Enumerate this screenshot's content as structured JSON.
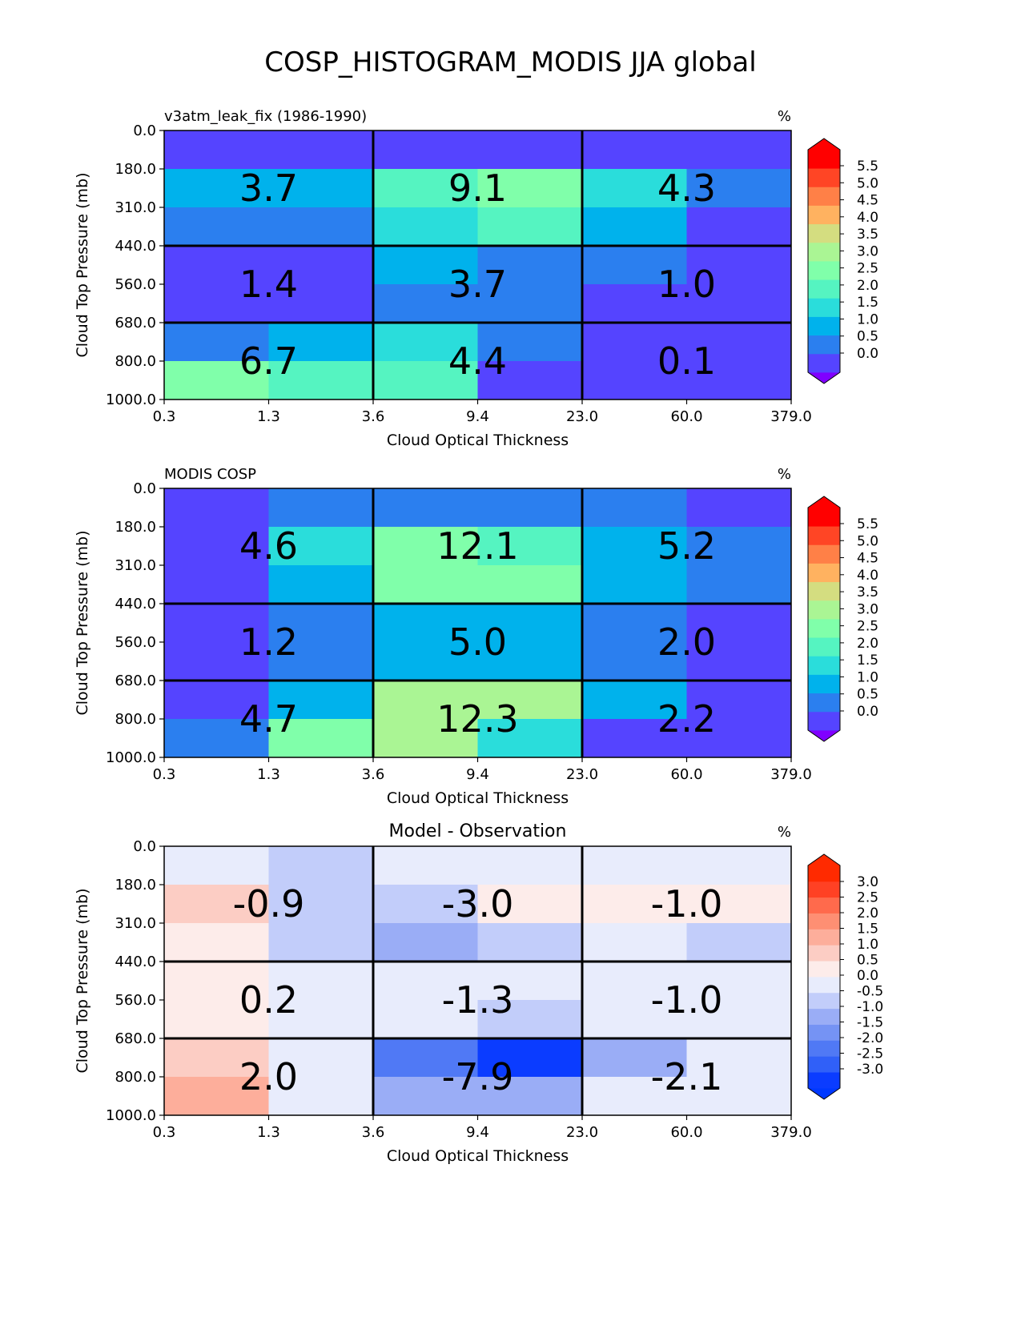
{
  "figure": {
    "title": "COSP_HISTOGRAM_MODIS JJA global"
  },
  "chart_data": [
    {
      "type": "heatmap",
      "title_left": "v3atm_leak_fix (1986-1990)",
      "title_center": "",
      "units": "%",
      "xlabel": "Cloud Optical Thickness",
      "ylabel": "Cloud Top Pressure (mb)",
      "x_ticks": [
        "0.3",
        "1.3",
        "3.6",
        "9.4",
        "23.0",
        "60.0",
        "379.0"
      ],
      "y_ticks": [
        "0.0",
        "180.0",
        "310.0",
        "440.0",
        "560.0",
        "680.0",
        "800.0",
        "1000.0"
      ],
      "cells": [
        [
          0.3,
          0.3,
          0.3,
          0.3,
          0.3,
          0.3
        ],
        [
          1.3,
          1.3,
          2.3,
          2.8,
          1.8,
          0.8
        ],
        [
          0.8,
          0.8,
          1.8,
          2.3,
          1.3,
          0.3
        ],
        [
          0.3,
          0.3,
          1.3,
          0.8,
          0.8,
          0.3
        ],
        [
          0.3,
          0.3,
          0.8,
          0.8,
          0.3,
          0.3
        ],
        [
          0.8,
          1.3,
          1.8,
          0.8,
          0.3,
          0.3
        ],
        [
          2.8,
          2.3,
          2.3,
          0.3,
          0.3,
          0.3
        ]
      ],
      "group_values": [
        [
          "3.7",
          "9.1",
          "4.3"
        ],
        [
          "1.4",
          "3.7",
          "1.0"
        ],
        [
          "6.7",
          "4.4",
          "0.1"
        ]
      ],
      "colorbar": {
        "ticks": [
          "5.5",
          "5.0",
          "4.5",
          "4.0",
          "3.5",
          "3.0",
          "2.5",
          "2.0",
          "1.5",
          "1.0",
          "0.5",
          "0.0"
        ],
        "levels": [
          0,
          0.5,
          1.0,
          1.5,
          2.0,
          2.5,
          3.0,
          3.5,
          4.0,
          4.5,
          5.0,
          5.5
        ],
        "colors": [
          "#5544ff",
          "#2b7fef",
          "#00b2ec",
          "#2adddb",
          "#55f4c1",
          "#80ffaa",
          "#aaf594",
          "#d4dd80",
          "#ffb260",
          "#ff8047",
          "#ff4525",
          "#ff0000"
        ],
        "under_color": "#8000ff",
        "over_color": "#ff0000"
      }
    },
    {
      "type": "heatmap",
      "title_left": "MODIS COSP",
      "title_center": "",
      "units": "%",
      "xlabel": "Cloud Optical Thickness",
      "ylabel": "Cloud Top Pressure (mb)",
      "x_ticks": [
        "0.3",
        "1.3",
        "3.6",
        "9.4",
        "23.0",
        "60.0",
        "379.0"
      ],
      "y_ticks": [
        "0.0",
        "180.0",
        "310.0",
        "440.0",
        "560.0",
        "680.0",
        "800.0",
        "1000.0"
      ],
      "cells": [
        [
          0.3,
          0.8,
          0.8,
          0.8,
          0.8,
          0.3
        ],
        [
          0.3,
          1.8,
          2.8,
          2.3,
          1.3,
          0.8
        ],
        [
          0.3,
          1.3,
          2.8,
          2.8,
          1.3,
          0.8
        ],
        [
          0.3,
          0.8,
          1.3,
          1.3,
          0.8,
          0.3
        ],
        [
          0.3,
          0.8,
          1.3,
          1.3,
          0.8,
          0.3
        ],
        [
          0.3,
          1.3,
          3.3,
          3.3,
          1.3,
          0.3
        ],
        [
          0.8,
          2.8,
          3.0,
          1.8,
          0.3,
          0.3
        ]
      ],
      "group_values": [
        [
          "4.6",
          "12.1",
          "5.2"
        ],
        [
          "1.2",
          "5.0",
          "2.0"
        ],
        [
          "4.7",
          "12.3",
          "2.2"
        ]
      ],
      "colorbar": {
        "ticks": [
          "5.5",
          "5.0",
          "4.5",
          "4.0",
          "3.5",
          "3.0",
          "2.5",
          "2.0",
          "1.5",
          "1.0",
          "0.5",
          "0.0"
        ],
        "levels": [
          0,
          0.5,
          1.0,
          1.5,
          2.0,
          2.5,
          3.0,
          3.5,
          4.0,
          4.5,
          5.0,
          5.5
        ],
        "colors": [
          "#5544ff",
          "#2b7fef",
          "#00b2ec",
          "#2adddb",
          "#55f4c1",
          "#80ffaa",
          "#aaf594",
          "#d4dd80",
          "#ffb260",
          "#ff8047",
          "#ff4525",
          "#ff0000"
        ],
        "under_color": "#8000ff",
        "over_color": "#ff0000"
      }
    },
    {
      "type": "heatmap",
      "title_left": "",
      "title_center": "Model - Observation",
      "units": "%",
      "xlabel": "Cloud Optical Thickness",
      "ylabel": "Cloud Top Pressure (mb)",
      "x_ticks": [
        "0.3",
        "1.3",
        "3.6",
        "9.4",
        "23.0",
        "60.0",
        "379.0"
      ],
      "y_ticks": [
        "0.0",
        "180.0",
        "310.0",
        "440.0",
        "560.0",
        "680.0",
        "800.0",
        "1000.0"
      ],
      "cells": [
        [
          -0.2,
          -0.7,
          -0.2,
          -0.2,
          -0.2,
          -0.2
        ],
        [
          0.7,
          -0.7,
          -0.7,
          0.2,
          0.2,
          0.2
        ],
        [
          0.2,
          -0.7,
          -1.2,
          -0.7,
          -0.2,
          -0.7
        ],
        [
          0.2,
          -0.2,
          -0.2,
          -0.2,
          -0.2,
          -0.2
        ],
        [
          0.2,
          -0.2,
          -0.2,
          -0.7,
          -0.2,
          -0.2
        ],
        [
          0.7,
          -0.2,
          -2.2,
          -3.2,
          -1.2,
          -0.2
        ],
        [
          1.2,
          -0.2,
          -1.2,
          -1.2,
          -0.2,
          -0.2
        ]
      ],
      "group_values": [
        [
          "-0.9",
          "-3.0",
          "-1.0"
        ],
        [
          "0.2",
          "-1.3",
          "-1.0"
        ],
        [
          "2.0",
          "-7.9",
          "-2.1"
        ]
      ],
      "colorbar": {
        "ticks": [
          "3.0",
          "2.5",
          "2.0",
          "1.5",
          "1.0",
          "0.5",
          "0.0",
          "-0.5",
          "-1.0",
          "-1.5",
          "-2.0",
          "-2.5",
          "-3.0"
        ],
        "levels": [
          -3.5,
          -3.0,
          -2.5,
          -2.0,
          -1.5,
          -1.0,
          -0.5,
          0.0,
          0.5,
          1.0,
          1.5,
          2.0,
          2.5,
          3.0,
          3.5
        ],
        "colors": [
          "#0b3cff",
          "#3060f8",
          "#5079f5",
          "#7593f4",
          "#9aadf6",
          "#c2cdfa",
          "#e8ecfc",
          "#fdecea",
          "#fccdc4",
          "#fdae9b",
          "#fe8f73",
          "#ff6a4c",
          "#ff4124",
          "#ff2a00"
        ],
        "under_color": "#0038ff",
        "over_color": "#ff2a00"
      }
    }
  ]
}
